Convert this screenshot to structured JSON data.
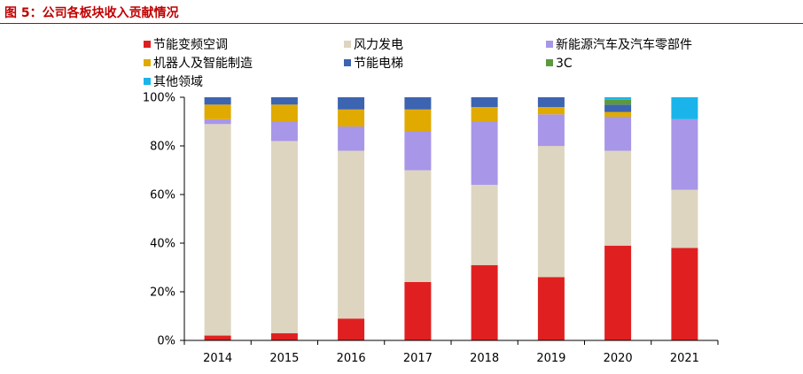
{
  "figure_title": "图 5：公司各板块收入贡献情况",
  "chart_data": {
    "type": "bar",
    "stacked": true,
    "categories": [
      "2014",
      "2015",
      "2016",
      "2017",
      "2018",
      "2019",
      "2020",
      "2021"
    ],
    "yticks": [
      "0%",
      "20%",
      "40%",
      "60%",
      "80%",
      "100%"
    ],
    "ylim": [
      0,
      100
    ],
    "grid": false,
    "legend_position": "top",
    "series": [
      {
        "name": "节能变频空调",
        "color": "#e02020",
        "values": [
          2,
          3,
          9,
          24,
          31,
          26,
          39,
          38
        ]
      },
      {
        "name": "风力发电",
        "color": "#ddd5c0",
        "values": [
          87,
          79,
          69,
          46,
          33,
          54,
          39,
          24
        ]
      },
      {
        "name": "新能源汽车及汽车零部件",
        "color": "#a896e8",
        "values": [
          2,
          8,
          10,
          16,
          26,
          13,
          14,
          29
        ]
      },
      {
        "name": "机器人及智能制造",
        "color": "#e0aa00",
        "values": [
          6,
          7,
          7,
          9,
          6,
          3,
          2,
          0
        ]
      },
      {
        "name": "节能电梯",
        "color": "#3d64b0",
        "values": [
          3,
          3,
          5,
          5,
          4,
          4,
          3,
          0
        ]
      },
      {
        "name": "3C",
        "color": "#5b9a3c",
        "values": [
          0,
          0,
          0,
          0,
          0,
          0,
          2,
          0
        ]
      },
      {
        "name": "其他领域",
        "color": "#1ab4ea",
        "values": [
          0,
          0,
          0,
          0,
          0,
          0,
          1,
          9
        ]
      }
    ]
  }
}
